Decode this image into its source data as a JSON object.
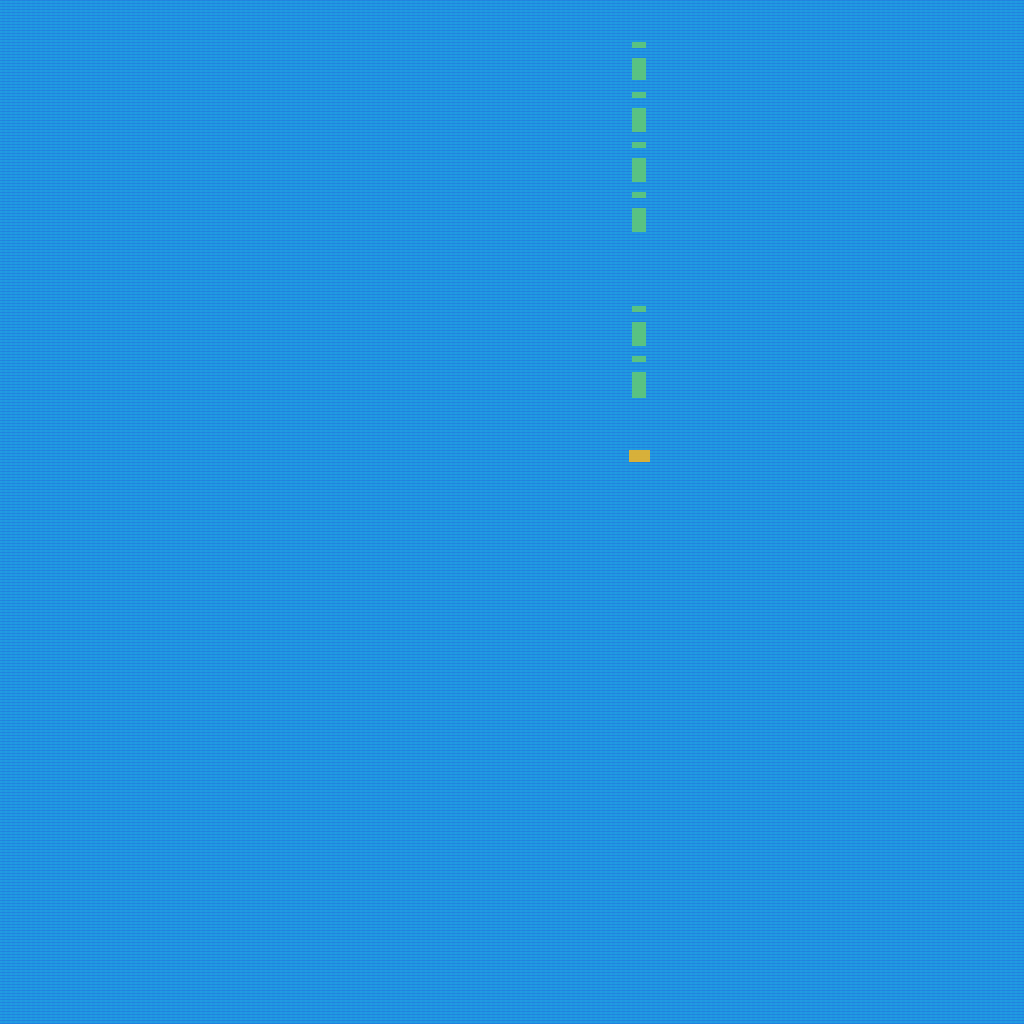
{
  "chart_data": {
    "type": "heatmap",
    "tick_labels": false,
    "xlim": [
      0,
      1024
    ],
    "ylim": [
      0,
      1024
    ],
    "color_range": [
      0,
      1
    ],
    "cells": [
      {
        "x0": 632,
        "x1": 646,
        "y0": 42,
        "y1": 48,
        "value": 0.6
      },
      {
        "x0": 632,
        "x1": 646,
        "y0": 58,
        "y1": 80,
        "value": 0.6
      },
      {
        "x0": 632,
        "x1": 646,
        "y0": 92,
        "y1": 98,
        "value": 0.6
      },
      {
        "x0": 632,
        "x1": 646,
        "y0": 108,
        "y1": 132,
        "value": 0.6
      },
      {
        "x0": 632,
        "x1": 646,
        "y0": 142,
        "y1": 148,
        "value": 0.6
      },
      {
        "x0": 632,
        "x1": 646,
        "y0": 158,
        "y1": 182,
        "value": 0.6
      },
      {
        "x0": 632,
        "x1": 646,
        "y0": 192,
        "y1": 198,
        "value": 0.6
      },
      {
        "x0": 632,
        "x1": 646,
        "y0": 208,
        "y1": 232,
        "value": 0.6
      },
      {
        "x0": 632,
        "x1": 646,
        "y0": 306,
        "y1": 312,
        "value": 0.6
      },
      {
        "x0": 632,
        "x1": 646,
        "y0": 322,
        "y1": 346,
        "value": 0.6
      },
      {
        "x0": 632,
        "x1": 646,
        "y0": 356,
        "y1": 362,
        "value": 0.6
      },
      {
        "x0": 632,
        "x1": 646,
        "y0": 372,
        "y1": 398,
        "value": 0.6
      },
      {
        "x0": 629,
        "x1": 650,
        "y0": 450,
        "y1": 462,
        "value": 0.85
      }
    ]
  }
}
